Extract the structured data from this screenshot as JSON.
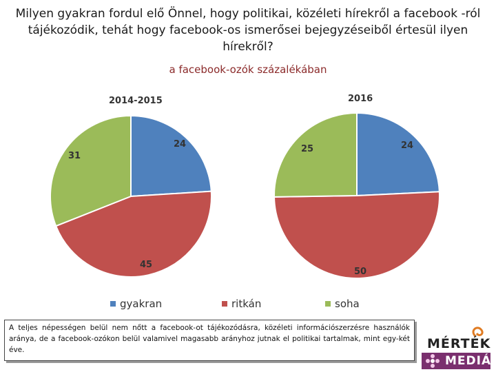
{
  "title": "Milyen gyakran fordul elő Önnel, hogy politikai, közéleti hírekről a facebook -ról tájékozódik, tehát hogy facebook-os ismerősei bejegyzéseiből értesül ilyen hírekről?",
  "subtitle": "a facebook-ozók százalékában",
  "chart_data": [
    {
      "type": "pie",
      "title": "2014-2015",
      "categories": [
        "gyakran",
        "ritkán",
        "soha"
      ],
      "values": [
        24,
        45,
        31
      ],
      "colors": [
        "#4f81bd",
        "#c0504d",
        "#9bbb59"
      ]
    },
    {
      "type": "pie",
      "title": "2016",
      "categories": [
        "gyakran",
        "ritkán",
        "soha"
      ],
      "values": [
        24,
        50,
        25
      ],
      "colors": [
        "#4f81bd",
        "#c0504d",
        "#9bbb59"
      ]
    }
  ],
  "legend": [
    {
      "label": "gyakran",
      "color": "#4f81bd"
    },
    {
      "label": "ritkán",
      "color": "#c0504d"
    },
    {
      "label": "soha",
      "color": "#9bbb59"
    }
  ],
  "note": "A teljes népességen belül nem nőtt a facebook-ot tájékozódásra, közéleti információszerzésre használók aránya, de a facebook-ozókon belül valamivel magasabb arányhoz jutnak el politikai tartalmak, mint egy-két éve.",
  "logo": {
    "top": "MÉRTÉK",
    "bottom": "MEDIÁN"
  }
}
